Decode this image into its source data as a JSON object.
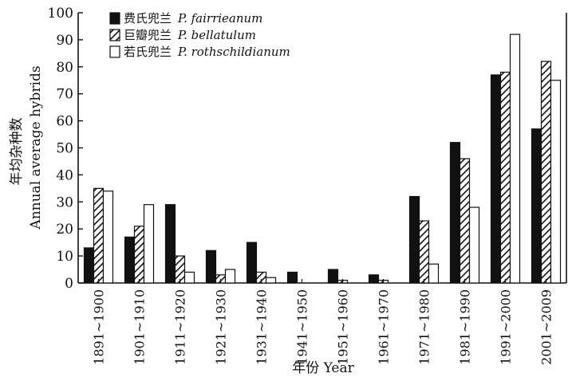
{
  "chart_data": {
    "type": "bar",
    "title": "",
    "xlabel": "年份 Year",
    "ylabel": [
      "年均杂种数",
      "Annual average hybrids"
    ],
    "ylim": [
      0,
      100
    ],
    "yticks": [
      0,
      10,
      20,
      30,
      40,
      50,
      60,
      70,
      80,
      90,
      100
    ],
    "legend_position": "top-left",
    "grid": false,
    "categories": [
      "1891~1900",
      "1901~1910",
      "1911~1920",
      "1921~1930",
      "1931~1940",
      "1941~1950",
      "1951~1960",
      "1961~1970",
      "1971~1980",
      "1981~1990",
      "1991~2000",
      "2001~2009"
    ],
    "series": [
      {
        "name": "费氏兜兰",
        "latin": "P. fairrieanum",
        "pattern": "solid",
        "values": [
          13,
          17,
          29,
          12,
          15,
          4,
          5,
          3,
          32,
          52,
          77,
          57
        ]
      },
      {
        "name": "巨瓣兜兰",
        "latin": "P. bellatulum",
        "pattern": "hatched",
        "values": [
          35,
          21,
          10,
          3,
          4,
          0,
          1,
          1,
          23,
          46,
          78,
          82
        ]
      },
      {
        "name": "若氏兜兰",
        "latin": "P. rothschildianum",
        "pattern": "open",
        "values": [
          34,
          29,
          4,
          5,
          2,
          0,
          0,
          0,
          7,
          28,
          92,
          75
        ]
      }
    ]
  }
}
